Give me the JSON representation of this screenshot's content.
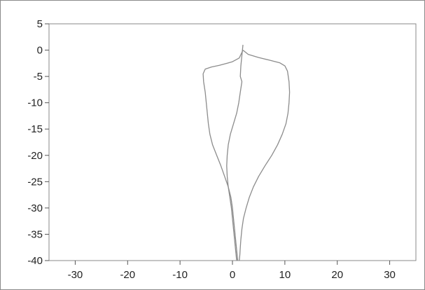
{
  "chart_data": {
    "type": "line",
    "title": "",
    "xlabel": "",
    "ylabel": "",
    "xlim": [
      -35,
      35
    ],
    "ylim": [
      -40,
      5
    ],
    "x_ticks": [
      -30,
      -20,
      -10,
      0,
      10,
      20,
      30
    ],
    "y_ticks": [
      5,
      0,
      -5,
      -10,
      -15,
      -20,
      -25,
      -30,
      -35,
      -40
    ],
    "grid": false,
    "legend": "none",
    "line_color": "#8c8c8c",
    "series": [
      {
        "x": [
          2,
          1.3,
          0,
          -1,
          -2.5,
          -4,
          -5.2,
          -5.6,
          -5.5,
          -5.2,
          -5,
          -4.8,
          -4.6,
          -4.3,
          -3.8,
          -3,
          -2.2,
          -1.5,
          -0.8,
          -0.3,
          0,
          0.2,
          0.4,
          0.6,
          0.8,
          1
        ],
        "y": [
          0,
          -1.5,
          -2.2,
          -2.5,
          -2.9,
          -3.2,
          -3.6,
          -4.5,
          -6,
          -8,
          -10,
          -12,
          -14,
          -16,
          -18,
          -20,
          -22,
          -24,
          -26,
          -28,
          -30,
          -32,
          -34,
          -36,
          -38,
          -40
        ]
      },
      {
        "x": [
          2,
          3,
          5,
          7,
          9,
          10,
          10.5,
          10.8,
          10.9,
          10.8,
          10.6,
          10.2,
          9.5,
          8.6,
          7.5,
          6.2,
          5,
          4,
          3.2,
          2.6,
          2.1,
          1.8,
          1.6,
          1.5,
          1.4,
          1.3
        ],
        "y": [
          0,
          -0.8,
          -1.4,
          -1.9,
          -2.4,
          -3,
          -4,
          -6,
          -8,
          -10,
          -12,
          -14,
          -16,
          -18,
          -20,
          -22,
          -24,
          -26,
          -28,
          -30,
          -32,
          -34,
          -36,
          -37.5,
          -39,
          -40
        ]
      },
      {
        "x": [
          2,
          1.8,
          1.6,
          1.5,
          1.8,
          1.5,
          1.2,
          0.8,
          0.2,
          -0.4,
          -0.8,
          -1,
          -1.1,
          -1,
          -0.8,
          -0.5,
          -0.2,
          0,
          0.2,
          0.4,
          0.6,
          0.8
        ],
        "y": [
          1,
          -1,
          -3,
          -5,
          -6,
          -8,
          -10,
          -12,
          -14,
          -16,
          -18,
          -20,
          -22,
          -24,
          -26,
          -28,
          -30,
          -32,
          -34,
          -36,
          -38,
          -40
        ]
      }
    ]
  }
}
